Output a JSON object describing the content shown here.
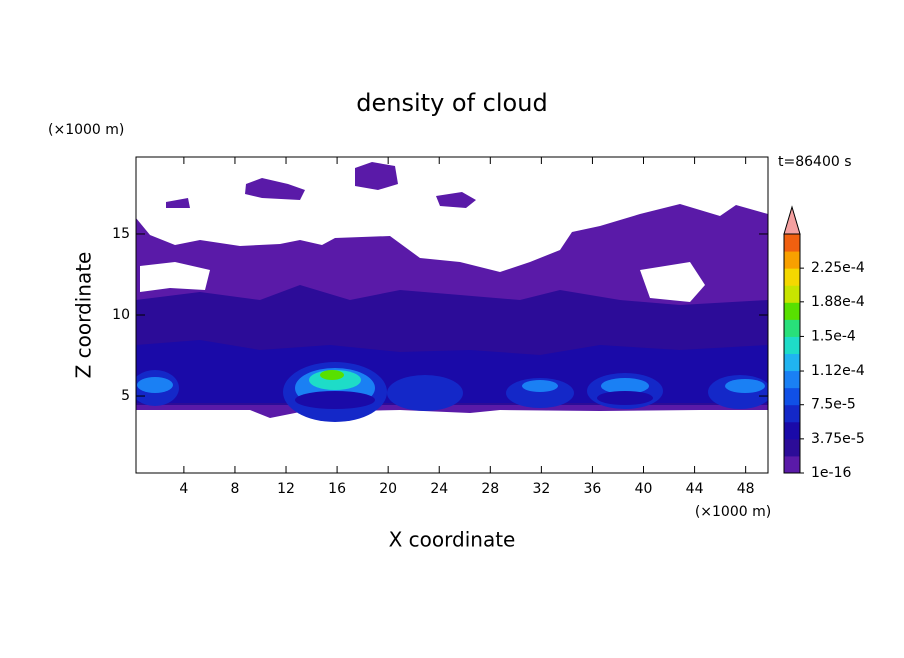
{
  "chart_data": {
    "type": "contour",
    "title": "density of cloud",
    "xlabel": "X coordinate",
    "ylabel": "Z coordinate",
    "xunit": "(×1000 m)",
    "yunit": "(×1000 m)",
    "annotation": "t=86400 s",
    "xlim": [
      0.25,
      49.75
    ],
    "ylim": [
      0.25,
      19.75
    ],
    "xticks": [
      4,
      8,
      12,
      16,
      20,
      24,
      28,
      32,
      36,
      40,
      44,
      48
    ],
    "yticks": [
      5,
      10,
      15
    ],
    "colorbar": {
      "clim": [
        0,
        0.0002625
      ],
      "ticks": [
        1e-16,
        {
          "value": 3.75e-05,
          "label": "3.75e-5"
        },
        {
          "value": 7.5e-05,
          "label": "7.5e-5"
        },
        {
          "value": 0.000112,
          "label": "1.12e-4"
        },
        {
          "value": 0.00015,
          "label": "1.5e-4"
        },
        {
          "value": 0.000188,
          "label": "1.88e-4"
        },
        {
          "value": 0.000225,
          "label": "2.25e-4"
        }
      ],
      "colors": [
        "#5a1aa8",
        "#2c0c98",
        "#1a0aa8",
        "#1428c8",
        "#1050e6",
        "#1a80f4",
        "#20b4f0",
        "#1edcc8",
        "#28e07a",
        "#58e000",
        "#c8e400",
        "#f4d800",
        "#f8a000",
        "#f06010"
      ],
      "extend_color": "#f4a0a0"
    }
  }
}
